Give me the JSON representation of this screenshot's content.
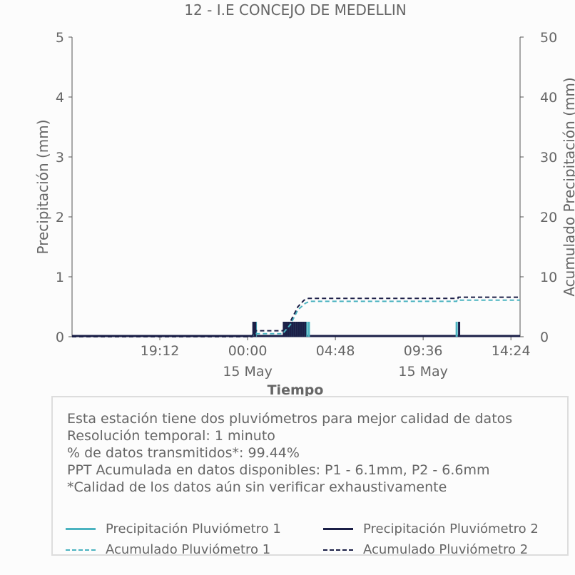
{
  "chart_data": {
    "type": "line",
    "title": "12 - I.E CONCEJO DE MEDELLIN",
    "xlabel": "Tiempo",
    "ylabel_left": "Precipitación (mm)",
    "ylabel_right": "Acumulado Precipitación (mm)",
    "ylim_left": [
      0,
      5
    ],
    "ylim_right": [
      0,
      50
    ],
    "yticks_left": [
      "0",
      "1",
      "2",
      "3",
      "4",
      "5"
    ],
    "yticks_right": [
      "0",
      "10",
      "20",
      "30",
      "40",
      "50"
    ],
    "xlim": [
      "2024-05-14 14:24",
      "2024-05-15 14:54"
    ],
    "xticks": [
      {
        "t": "2024-05-14 19:12",
        "label": "19:12",
        "sub": ""
      },
      {
        "t": "2024-05-15 00:00",
        "label": "00:00",
        "sub": "15 May"
      },
      {
        "t": "2024-05-15 04:48",
        "label": "04:48",
        "sub": ""
      },
      {
        "t": "2024-05-15 09:36",
        "label": "09:36",
        "sub": "15 May"
      },
      {
        "t": "2024-05-15 14:24",
        "label": "14:24",
        "sub": ""
      }
    ],
    "grid": false,
    "series": [
      {
        "name": "Precipitación Pluviómetro 1",
        "axis": "left",
        "style": "solid",
        "color": "#4bb3c0",
        "bars": [
          [
            "2024-05-15 00:20",
            0.25
          ],
          [
            "2024-05-15 00:27",
            0.25
          ],
          [
            "2024-05-15 02:01",
            0.25
          ],
          [
            "2024-05-15 02:09",
            0.25
          ],
          [
            "2024-05-15 02:17",
            0.25
          ],
          [
            "2024-05-15 02:25",
            0.25
          ],
          [
            "2024-05-15 02:33",
            0.25
          ],
          [
            "2024-05-15 02:41",
            0.25
          ],
          [
            "2024-05-15 02:49",
            0.25
          ],
          [
            "2024-05-15 02:57",
            0.25
          ],
          [
            "2024-05-15 03:05",
            0.25
          ],
          [
            "2024-05-15 03:13",
            0.25
          ],
          [
            "2024-05-15 03:21",
            0.25
          ],
          [
            "2024-05-15 11:26",
            0.25
          ]
        ]
      },
      {
        "name": "Precipitación Pluviómetro 2",
        "axis": "left",
        "style": "solid",
        "color": "#1b1f47",
        "bars": [
          [
            "2024-05-15 00:19",
            0.25
          ],
          [
            "2024-05-15 00:25",
            0.25
          ],
          [
            "2024-05-15 01:59",
            0.25
          ],
          [
            "2024-05-15 02:06",
            0.25
          ],
          [
            "2024-05-15 02:13",
            0.25
          ],
          [
            "2024-05-15 02:20",
            0.25
          ],
          [
            "2024-05-15 02:27",
            0.25
          ],
          [
            "2024-05-15 02:34",
            0.25
          ],
          [
            "2024-05-15 02:41",
            0.25
          ],
          [
            "2024-05-15 02:48",
            0.25
          ],
          [
            "2024-05-15 02:55",
            0.25
          ],
          [
            "2024-05-15 03:02",
            0.25
          ],
          [
            "2024-05-15 03:09",
            0.25
          ],
          [
            "2024-05-15 11:34",
            0.25
          ]
        ]
      },
      {
        "name": "Acumulado Pluviómetro 1",
        "axis": "right",
        "style": "dashed",
        "color": "#4bb3c0",
        "points": [
          [
            "2024-05-14 14:24",
            0
          ],
          [
            "2024-05-15 00:15",
            0
          ],
          [
            "2024-05-15 00:20",
            0.5
          ],
          [
            "2024-05-15 01:55",
            0.5
          ],
          [
            "2024-05-15 02:20",
            2.0
          ],
          [
            "2024-05-15 02:45",
            4.5
          ],
          [
            "2024-05-15 03:10",
            5.6
          ],
          [
            "2024-05-15 03:25",
            5.9
          ],
          [
            "2024-05-15 11:26",
            5.9
          ],
          [
            "2024-05-15 11:27",
            6.1
          ],
          [
            "2024-05-15 14:54",
            6.1
          ]
        ]
      },
      {
        "name": "Acumulado Pluviómetro 2",
        "axis": "right",
        "style": "dashed",
        "color": "#1b1f47",
        "points": [
          [
            "2024-05-14 14:24",
            0
          ],
          [
            "2024-05-15 00:15",
            0
          ],
          [
            "2024-05-15 00:20",
            1.0
          ],
          [
            "2024-05-15 01:55",
            1.0
          ],
          [
            "2024-05-15 02:20",
            2.5
          ],
          [
            "2024-05-15 02:45",
            5.0
          ],
          [
            "2024-05-15 03:05",
            6.1
          ],
          [
            "2024-05-15 03:20",
            6.4
          ],
          [
            "2024-05-15 11:30",
            6.4
          ],
          [
            "2024-05-15 11:31",
            6.6
          ],
          [
            "2024-05-15 14:54",
            6.6
          ]
        ]
      }
    ]
  },
  "info": {
    "lines": [
      "Esta estación tiene dos pluviómetros para mejor calidad de datos",
      "Resolución temporal: 1 minuto",
      "% de datos transmitidos*: 99.44%",
      "PPT Acumulada en datos disponibles: P1 - 6.1mm, P2 - 6.6mm",
      "*Calidad de los datos aún sin verificar exhaustivamente"
    ]
  },
  "legend": {
    "items": [
      {
        "label": "Precipitación Pluviómetro 1",
        "color": "#4bb3c0",
        "style": "solid"
      },
      {
        "label": "Precipitación Pluviómetro 2",
        "color": "#1b1f47",
        "style": "solid"
      },
      {
        "label": "Acumulado Pluviómetro 1",
        "color": "#4bb3c0",
        "style": "dashed"
      },
      {
        "label": "Acumulado Pluviómetro 2",
        "color": "#1b1f47",
        "style": "dashed"
      }
    ]
  }
}
